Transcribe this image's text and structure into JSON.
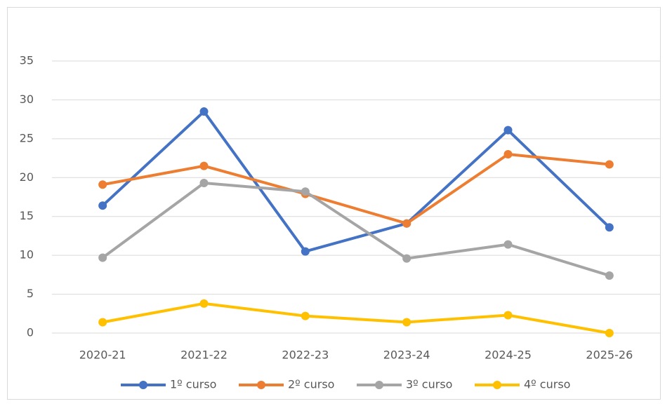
{
  "chart_data": {
    "type": "line",
    "categories": [
      "2020-21",
      "2021-22",
      "2022-23",
      "2023-24",
      "2024-25",
      "2025-26"
    ],
    "series": [
      {
        "name": "1º curso",
        "color": "#4472c4",
        "values": [
          16.4,
          28.5,
          10.5,
          14.1,
          26.1,
          13.6
        ]
      },
      {
        "name": "2º curso",
        "color": "#ed7d31",
        "values": [
          19.1,
          21.5,
          17.9,
          14.1,
          23.0,
          21.7
        ]
      },
      {
        "name": "3º curso",
        "color": "#a5a5a5",
        "values": [
          9.7,
          19.3,
          18.2,
          9.6,
          11.4,
          7.4
        ]
      },
      {
        "name": "4º curso",
        "color": "#ffc000",
        "values": [
          1.4,
          3.8,
          2.2,
          1.4,
          2.3,
          0
        ]
      }
    ],
    "ylim": [
      0,
      35
    ],
    "yticks": [
      0,
      5,
      10,
      15,
      20,
      25,
      30,
      35
    ],
    "grid": true,
    "legend": "bottom"
  }
}
